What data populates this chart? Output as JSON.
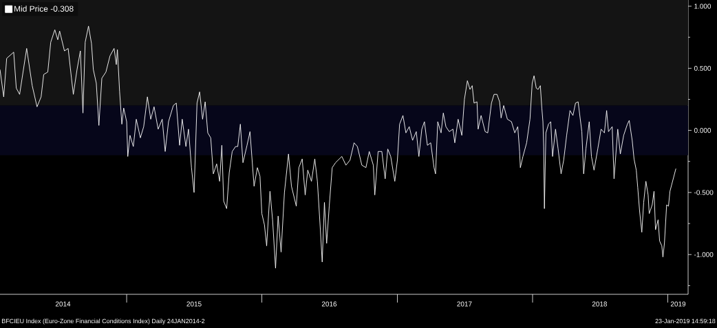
{
  "chart_data": {
    "type": "line",
    "x": [
      "2014-01-24",
      "2014-02-03",
      "2014-02-11",
      "2014-03-02",
      "2014-03-09",
      "2014-03-18",
      "2014-04-06",
      "2014-04-21",
      "2014-05-04",
      "2014-05-15",
      "2014-05-22",
      "2014-06-02",
      "2014-06-10",
      "2014-06-21",
      "2014-06-29",
      "2014-07-04",
      "2014-07-17",
      "2014-07-27",
      "2014-08-05",
      "2014-08-10",
      "2014-08-20",
      "2014-08-29",
      "2014-09-05",
      "2014-09-11",
      "2014-09-20",
      "2014-09-28",
      "2014-10-03",
      "2014-10-11",
      "2014-10-18",
      "2014-10-26",
      "2014-11-06",
      "2014-11-17",
      "2014-11-28",
      "2014-12-04",
      "2014-12-07",
      "2014-12-13",
      "2014-12-19",
      "2014-12-24",
      "2015-01-01",
      "2015-01-04",
      "2015-01-10",
      "2015-01-19",
      "2015-01-27",
      "2015-02-07",
      "2015-02-16",
      "2015-02-26",
      "2015-03-07",
      "2015-03-16",
      "2015-03-27",
      "2015-04-07",
      "2015-04-15",
      "2015-04-24",
      "2015-05-07",
      "2015-05-15",
      "2015-05-24",
      "2015-05-31",
      "2015-06-10",
      "2015-06-17",
      "2015-06-25",
      "2015-07-02",
      "2015-07-10",
      "2015-07-17",
      "2015-07-25",
      "2015-08-01",
      "2015-08-08",
      "2015-08-16",
      "2015-08-23",
      "2015-09-01",
      "2015-09-09",
      "2015-09-15",
      "2015-09-20",
      "2015-09-28",
      "2015-10-05",
      "2015-10-13",
      "2015-10-22",
      "2015-10-28",
      "2015-11-04",
      "2015-11-11",
      "2015-11-22",
      "2015-11-30",
      "2015-12-11",
      "2015-12-20",
      "2015-12-27",
      "2016-01-01",
      "2016-01-08",
      "2016-01-14",
      "2016-01-23",
      "2016-01-30",
      "2016-02-07",
      "2016-02-14",
      "2016-02-22",
      "2016-03-02",
      "2016-03-13",
      "2016-03-21",
      "2016-04-03",
      "2016-04-10",
      "2016-04-19",
      "2016-04-27",
      "2016-05-04",
      "2016-05-14",
      "2016-05-23",
      "2016-05-30",
      "2016-06-07",
      "2016-06-12",
      "2016-06-18",
      "2016-06-24",
      "2016-07-01",
      "2016-07-09",
      "2016-07-18",
      "2016-08-04",
      "2016-08-15",
      "2016-08-26",
      "2016-09-06",
      "2016-09-15",
      "2016-09-27",
      "2016-10-08",
      "2016-10-17",
      "2016-10-28",
      "2016-11-01",
      "2016-11-10",
      "2016-11-20",
      "2016-11-29",
      "2016-12-06",
      "2016-12-14",
      "2016-12-25",
      "2017-01-01",
      "2017-01-07",
      "2017-01-16",
      "2017-01-24",
      "2017-02-02",
      "2017-02-11",
      "2017-02-21",
      "2017-02-28",
      "2017-03-08",
      "2017-03-15",
      "2017-03-23",
      "2017-04-01",
      "2017-04-10",
      "2017-04-14",
      "2017-04-20",
      "2017-04-29",
      "2017-05-05",
      "2017-05-12",
      "2017-05-21",
      "2017-05-31",
      "2017-06-05",
      "2017-06-14",
      "2017-06-24",
      "2017-07-01",
      "2017-07-09",
      "2017-07-16",
      "2017-07-22",
      "2017-07-27",
      "2017-08-04",
      "2017-08-07",
      "2017-08-15",
      "2017-08-26",
      "2017-09-02",
      "2017-09-12",
      "2017-09-19",
      "2017-09-27",
      "2017-10-04",
      "2017-10-08",
      "2017-10-15",
      "2017-10-25",
      "2017-11-05",
      "2017-11-14",
      "2017-11-22",
      "2017-11-27",
      "2017-11-29",
      "2017-12-06",
      "2017-12-16",
      "2017-12-25",
      "2017-12-31",
      "2018-01-05",
      "2018-01-11",
      "2018-01-16",
      "2018-01-22",
      "2018-01-26",
      "2018-01-29",
      "2018-01-31",
      "2018-02-02",
      "2018-02-06",
      "2018-02-13",
      "2018-02-19",
      "2018-02-24",
      "2018-03-04",
      "2018-03-11",
      "2018-03-19",
      "2018-03-26",
      "2018-04-03",
      "2018-04-12",
      "2018-04-20",
      "2018-04-27",
      "2018-05-04",
      "2018-05-14",
      "2018-05-19",
      "2018-05-25",
      "2018-06-03",
      "2018-06-09",
      "2018-06-16",
      "2018-06-26",
      "2018-07-05",
      "2018-07-14",
      "2018-07-20",
      "2018-07-25",
      "2018-08-04",
      "2018-08-09",
      "2018-08-19",
      "2018-08-26",
      "2018-09-04",
      "2018-09-14",
      "2018-09-19",
      "2018-09-27",
      "2018-10-02",
      "2018-10-08",
      "2018-10-12",
      "2018-10-17",
      "2018-10-23",
      "2018-10-28",
      "2018-11-03",
      "2018-11-09",
      "2018-11-12",
      "2018-11-20",
      "2018-11-25",
      "2018-11-29",
      "2018-12-06",
      "2018-12-10",
      "2018-12-16",
      "2018-12-19",
      "2018-12-23",
      "2018-12-29",
      "2019-01-03",
      "2019-01-07",
      "2019-01-23"
    ],
    "series": [
      {
        "name": "Mid Price -0.308",
        "color": "#ffffff",
        "values": [
          0.49,
          0.27,
          0.58,
          0.63,
          0.34,
          0.29,
          0.66,
          0.36,
          0.19,
          0.27,
          0.45,
          0.47,
          0.71,
          0.81,
          0.73,
          0.8,
          0.64,
          0.66,
          0.42,
          0.29,
          0.49,
          0.64,
          0.14,
          0.71,
          0.84,
          0.7,
          0.49,
          0.38,
          0.04,
          0.42,
          0.47,
          0.6,
          0.66,
          0.53,
          0.65,
          0.31,
          0.05,
          0.18,
          0.07,
          -0.21,
          -0.04,
          -0.13,
          0.09,
          -0.06,
          0.03,
          0.27,
          0.09,
          0.19,
          0.01,
          0.09,
          -0.17,
          0.07,
          0.2,
          0.22,
          -0.12,
          0.09,
          -0.13,
          0.01,
          -0.3,
          -0.5,
          0.22,
          0.31,
          0.09,
          0.23,
          -0.02,
          -0.06,
          -0.35,
          -0.27,
          -0.41,
          -0.12,
          -0.57,
          -0.63,
          -0.34,
          -0.17,
          -0.13,
          -0.13,
          0.05,
          -0.26,
          -0.12,
          -0.01,
          -0.45,
          -0.3,
          -0.37,
          -0.67,
          -0.76,
          -0.93,
          -0.49,
          -0.72,
          -1.11,
          -0.69,
          -0.98,
          -0.5,
          -0.19,
          -0.45,
          -0.61,
          -0.3,
          -0.23,
          -0.52,
          -0.32,
          -0.41,
          -0.23,
          -0.41,
          -0.8,
          -1.06,
          -0.58,
          -0.91,
          -0.61,
          -0.3,
          -0.26,
          -0.21,
          -0.28,
          -0.24,
          -0.1,
          -0.13,
          -0.28,
          -0.3,
          -0.17,
          -0.28,
          -0.52,
          -0.17,
          -0.17,
          -0.39,
          -0.15,
          -0.21,
          -0.41,
          -0.24,
          0.05,
          0.12,
          -0.02,
          0.03,
          -0.08,
          -0.01,
          -0.21,
          0.01,
          0.07,
          -0.12,
          -0.1,
          -0.3,
          -0.35,
          0.07,
          -0.02,
          0.14,
          0.03,
          -0.01,
          0.01,
          -0.1,
          0.09,
          -0.04,
          0.25,
          0.4,
          0.33,
          0.36,
          0.22,
          0.23,
          0.01,
          0.12,
          -0.01,
          -0.02,
          0.22,
          0.29,
          0.29,
          0.23,
          0.1,
          0.2,
          0.09,
          0.07,
          -0.02,
          0.03,
          -0.17,
          -0.3,
          -0.21,
          -0.1,
          0.09,
          0.38,
          0.44,
          0.34,
          0.33,
          0.36,
          0.18,
          0.07,
          -0.13,
          -0.63,
          -0.02,
          0.05,
          0.07,
          -0.21,
          0.01,
          -0.15,
          -0.35,
          -0.24,
          -0.04,
          0.16,
          0.12,
          0.22,
          0.23,
          -0.01,
          -0.35,
          -0.15,
          0.07,
          -0.21,
          -0.32,
          -0.15,
          0.01,
          -0.02,
          0.16,
          -0.01,
          0.03,
          -0.39,
          0.01,
          -0.19,
          -0.04,
          0.05,
          0.08,
          -0.08,
          -0.23,
          -0.32,
          -0.46,
          -0.65,
          -0.82,
          -0.58,
          -0.41,
          -0.52,
          -0.67,
          -0.6,
          -0.49,
          -0.8,
          -0.72,
          -0.89,
          -0.93,
          -1.02,
          -0.91,
          -0.6,
          -0.61,
          -0.49,
          -0.308
        ]
      }
    ],
    "xlim": [
      "2014-01-24",
      "2019-02-25"
    ],
    "xticks": [
      {
        "value": "2014-07-13",
        "label": "2014"
      },
      {
        "value": "2015-01-01",
        "label": null
      },
      {
        "value": "2015-07-02",
        "label": "2015"
      },
      {
        "value": "2016-01-01",
        "label": null
      },
      {
        "value": "2016-07-01",
        "label": "2016"
      },
      {
        "value": "2017-01-01",
        "label": null
      },
      {
        "value": "2017-07-01",
        "label": "2017"
      },
      {
        "value": "2018-01-01",
        "label": null
      },
      {
        "value": "2018-07-01",
        "label": "2018"
      },
      {
        "value": "2019-01-01",
        "label": null
      },
      {
        "value": "2019-01-29",
        "label": "2019"
      }
    ],
    "ylim": [
      -1.32,
      1.05
    ],
    "yticks": [
      {
        "value": -1.25,
        "label": null
      },
      {
        "value": -1,
        "label": "-1.000"
      },
      {
        "value": -0.75,
        "label": null
      },
      {
        "value": -0.5,
        "label": "-0.500"
      },
      {
        "value": -0.25,
        "label": null
      },
      {
        "value": 0,
        "label": "0.000"
      },
      {
        "value": 0.25,
        "label": null
      },
      {
        "value": 0.5,
        "label": "0.500"
      },
      {
        "value": 0.75,
        "label": null
      },
      {
        "value": 1,
        "label": "1.000"
      }
    ],
    "bands": [
      {
        "axis": "y",
        "from": 0.2,
        "to": 1.05,
        "color": "#141414"
      },
      {
        "axis": "y",
        "from": -0.2,
        "to": 0.2,
        "color": "#06061a"
      }
    ],
    "legend": "top left",
    "annotations": [
      "BFCIEU Index (Euro-Zone Financial Conditions Index)  Daily 24JAN2014-2",
      "23-Jan-2019 14:59:18"
    ]
  }
}
